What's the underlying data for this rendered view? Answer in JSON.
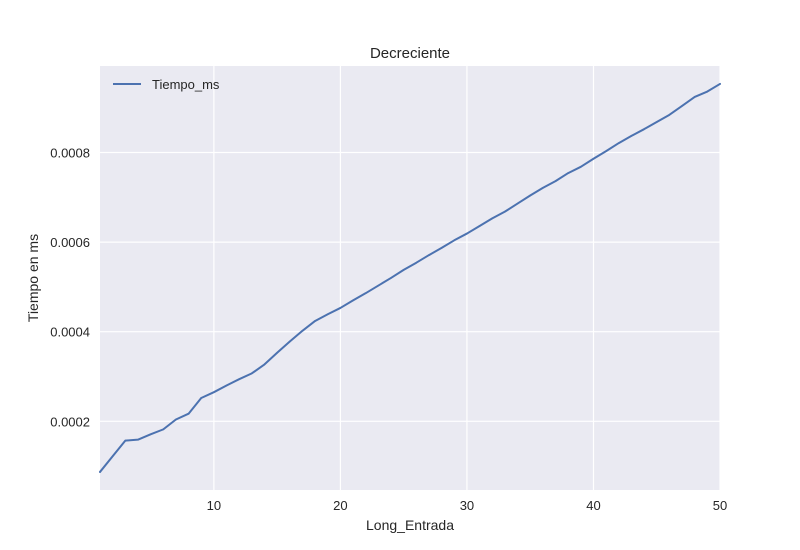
{
  "chart_data": {
    "type": "line",
    "title": "Decreciente",
    "xlabel": "Long_Entrada",
    "ylabel": "Tiempo en ms",
    "xlim": [
      1,
      50
    ],
    "ylim": [
      4.67e-05,
      0.000993
    ],
    "xticks": [
      10,
      20,
      30,
      40,
      50
    ],
    "xtick_labels": [
      "10",
      "20",
      "30",
      "40",
      "50"
    ],
    "yticks": [
      0.0002,
      0.0004,
      0.0006,
      0.0008
    ],
    "ytick_labels": [
      "0.0002",
      "0.0004",
      "0.0006",
      "0.0008"
    ],
    "grid": true,
    "legend": "top-left",
    "colors": {
      "background": "#eaeaf2",
      "grid": "#ffffff",
      "line": "#4c72b0"
    },
    "series": [
      {
        "name": "Tiempo_ms",
        "x": [
          1,
          2,
          3,
          4,
          5,
          6,
          7,
          8,
          9,
          10,
          11,
          12,
          13,
          14,
          15,
          16,
          17,
          18,
          19,
          20,
          21,
          22,
          23,
          24,
          25,
          26,
          27,
          28,
          29,
          30,
          31,
          32,
          33,
          34,
          35,
          36,
          37,
          38,
          39,
          40,
          41,
          42,
          43,
          44,
          45,
          46,
          47,
          48,
          49,
          50
        ],
        "values": [
          8.7e-05,
          0.000122,
          0.000157,
          0.000159,
          0.000171,
          0.000182,
          0.000204,
          0.000217,
          0.000252,
          0.000265,
          0.00028,
          0.000294,
          0.000307,
          0.000327,
          0.000353,
          0.000378,
          0.000402,
          0.000424,
          0.000439,
          0.000453,
          0.00047,
          0.000486,
          0.000503,
          0.00052,
          0.000538,
          0.000554,
          0.000571,
          0.000587,
          0.000604,
          0.000619,
          0.000636,
          0.000653,
          0.000668,
          0.000686,
          0.000704,
          0.000721,
          0.000736,
          0.000754,
          0.000768,
          0.000786,
          0.000803,
          0.000821,
          0.000837,
          0.000852,
          0.000868,
          0.000884,
          0.000904,
          0.000924,
          0.000936,
          0.000953
        ]
      }
    ]
  }
}
